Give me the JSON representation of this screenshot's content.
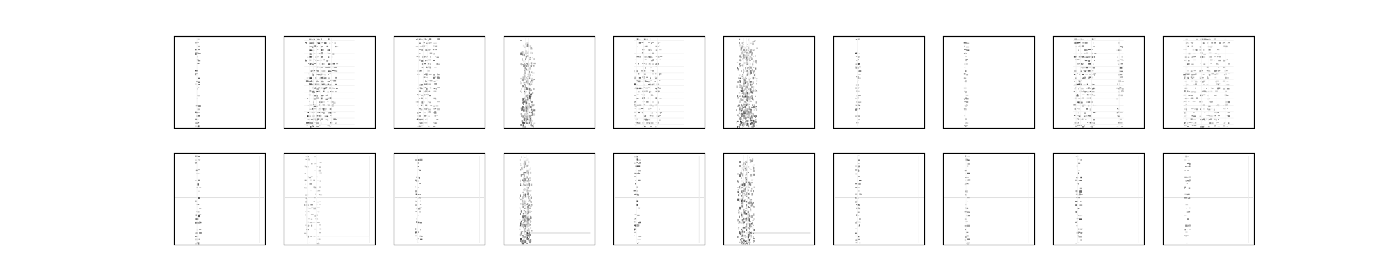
{
  "figure": {
    "rows": 2,
    "cols": 10,
    "background": "#ffffff",
    "frame_color": "#000000",
    "colormap": "gray_r"
  },
  "chart_data": {
    "type": "heatmap",
    "title": "",
    "xlabel": "",
    "ylabel": "",
    "ticks_visible": false,
    "grid": false,
    "legend": "none",
    "panels": [
      {
        "row": 0,
        "col": 0,
        "pattern": "sparse-column",
        "columns": [
          0.25
        ],
        "intensity": 0.75,
        "band_spread": 0.02
      },
      {
        "row": 0,
        "col": 1,
        "pattern": "multi-column-dense",
        "columns": [
          0.28,
          0.32,
          0.36,
          0.4,
          0.45,
          0.52
        ],
        "intensity": 0.85,
        "band_spread": 0.05
      },
      {
        "row": 0,
        "col": 2,
        "pattern": "sparse-column",
        "columns": [
          0.27,
          0.32,
          0.37,
          0.45
        ],
        "intensity": 0.7,
        "band_spread": 0.03
      },
      {
        "row": 0,
        "col": 3,
        "pattern": "diffuse-band",
        "columns": [
          0.24,
          0.27
        ],
        "intensity": 0.85,
        "band_spread": 0.06
      },
      {
        "row": 0,
        "col": 4,
        "pattern": "multi-column",
        "columns": [
          0.25,
          0.33,
          0.4,
          0.48
        ],
        "intensity": 0.75,
        "band_spread": 0.03
      },
      {
        "row": 0,
        "col": 5,
        "pattern": "diffuse-band",
        "columns": [
          0.22,
          0.25,
          0.28
        ],
        "intensity": 0.9,
        "band_spread": 0.08
      },
      {
        "row": 0,
        "col": 6,
        "pattern": "sparse-column",
        "columns": [
          0.26
        ],
        "intensity": 0.7,
        "band_spread": 0.02
      },
      {
        "row": 0,
        "col": 7,
        "pattern": "sparse-column",
        "columns": [
          0.24
        ],
        "intensity": 0.65,
        "band_spread": 0.015
      },
      {
        "row": 0,
        "col": 8,
        "pattern": "multi-column",
        "columns": [
          0.25,
          0.3,
          0.36,
          0.42,
          0.72
        ],
        "intensity": 0.8,
        "band_spread": 0.03
      },
      {
        "row": 0,
        "col": 9,
        "pattern": "multi-column",
        "columns": [
          0.25,
          0.33,
          0.42,
          0.5,
          0.58,
          0.68
        ],
        "intensity": 0.6,
        "band_spread": 0.03
      },
      {
        "row": 1,
        "col": 0,
        "pattern": "column-with-cross",
        "columns": [
          0.25
        ],
        "intensity": 0.75,
        "band_spread": 0.025
      },
      {
        "row": 1,
        "col": 1,
        "pattern": "faint-column-with-box",
        "columns": [
          0.26,
          0.36
        ],
        "intensity": 0.45,
        "band_spread": 0.04
      },
      {
        "row": 1,
        "col": 2,
        "pattern": "column-with-cross",
        "columns": [
          0.26
        ],
        "intensity": 0.65,
        "band_spread": 0.03
      },
      {
        "row": 1,
        "col": 3,
        "pattern": "diffuse-band",
        "columns": [
          0.22,
          0.25
        ],
        "intensity": 0.85,
        "band_spread": 0.05
      },
      {
        "row": 1,
        "col": 4,
        "pattern": "column-with-cross",
        "columns": [
          0.25
        ],
        "intensity": 0.8,
        "band_spread": 0.035
      },
      {
        "row": 1,
        "col": 5,
        "pattern": "diffuse-band",
        "columns": [
          0.22,
          0.26
        ],
        "intensity": 0.9,
        "band_spread": 0.07
      },
      {
        "row": 1,
        "col": 6,
        "pattern": "column-with-cross",
        "columns": [
          0.26
        ],
        "intensity": 0.65,
        "band_spread": 0.025
      },
      {
        "row": 1,
        "col": 7,
        "pattern": "column-with-cross",
        "columns": [
          0.25
        ],
        "intensity": 0.6,
        "band_spread": 0.02
      },
      {
        "row": 1,
        "col": 8,
        "pattern": "column-with-cross",
        "columns": [
          0.27
        ],
        "intensity": 0.75,
        "band_spread": 0.03
      },
      {
        "row": 1,
        "col": 9,
        "pattern": "column-with-cross",
        "columns": [
          0.26
        ],
        "intensity": 0.65,
        "band_spread": 0.03
      }
    ]
  }
}
